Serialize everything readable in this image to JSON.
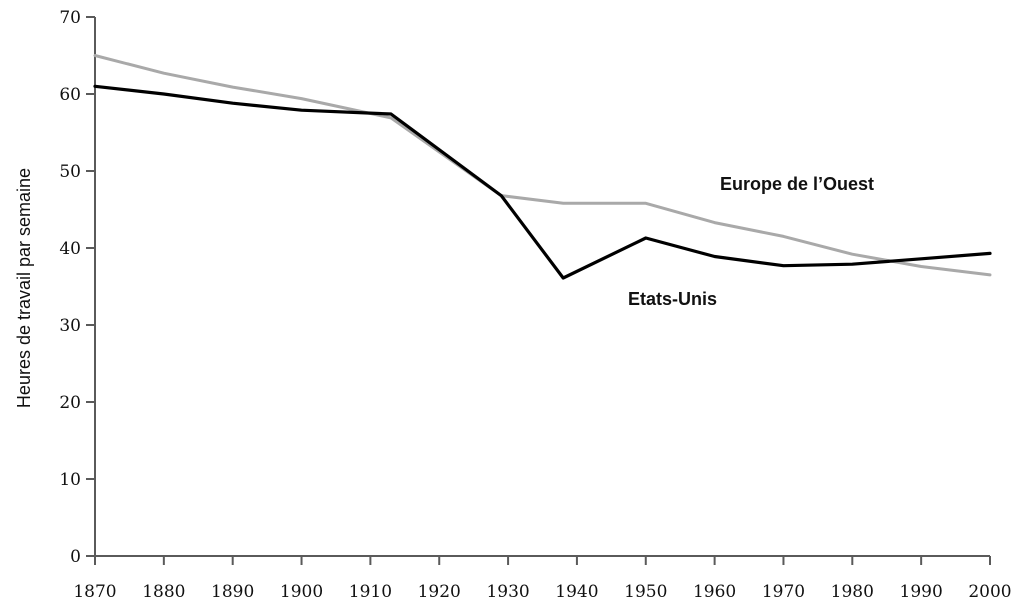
{
  "chart_data": {
    "type": "line",
    "title": "",
    "xlabel": "",
    "ylabel": "Heures de travail par semaine",
    "xlim": [
      1870,
      2000
    ],
    "ylim": [
      0,
      70
    ],
    "x_ticks": [
      "1870",
      "1880",
      "1890",
      "1900",
      "1910",
      "1920",
      "1930",
      "1940",
      "1950",
      "1960",
      "1970",
      "1980",
      "1990",
      "2000"
    ],
    "y_ticks": [
      "0",
      "10",
      "20",
      "30",
      "40",
      "50",
      "60",
      "70"
    ],
    "grid": false,
    "legend": "none (series labeled directly on chart)",
    "series": [
      {
        "name": "Europe de l’Ouest",
        "color": "#a9a9a9",
        "x": [
          1870,
          1880,
          1890,
          1900,
          1913,
          1929,
          1938,
          1950,
          1960,
          1970,
          1980,
          1990,
          2000
        ],
        "y": [
          65,
          62.7,
          60.9,
          59.4,
          56.9,
          46.8,
          45.8,
          45.8,
          43.3,
          41.5,
          39.2,
          37.6,
          36.5
        ]
      },
      {
        "name": "Etats-Unis",
        "color": "#000000",
        "x": [
          1870,
          1880,
          1890,
          1900,
          1913,
          1929,
          1938,
          1950,
          1960,
          1970,
          1980,
          1990,
          2000
        ],
        "y": [
          61,
          60,
          58.8,
          57.9,
          57.4,
          46.8,
          36.1,
          41.3,
          38.9,
          37.7,
          37.9,
          38.6,
          39.3
        ]
      }
    ]
  }
}
